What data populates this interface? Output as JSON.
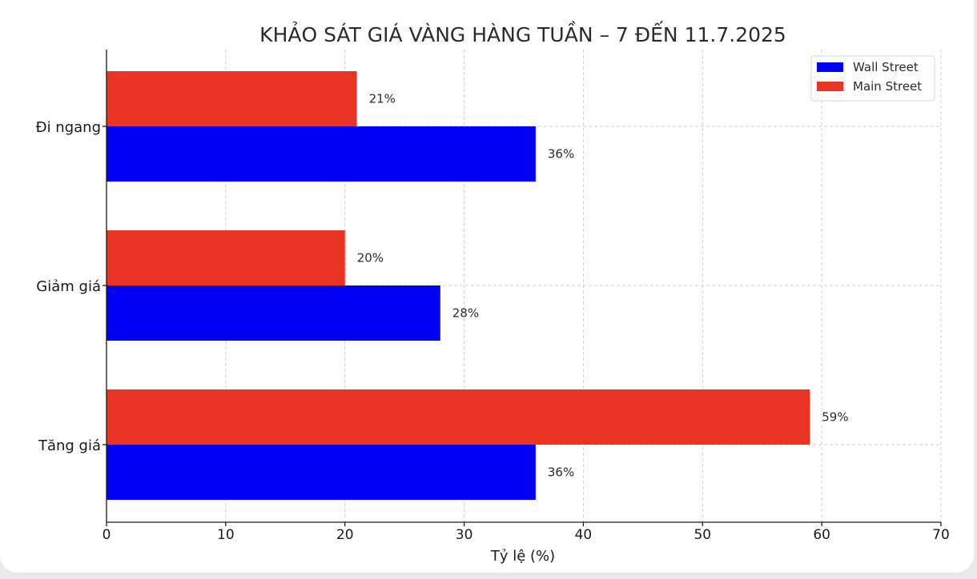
{
  "chart_data": {
    "type": "bar",
    "orientation": "horizontal",
    "title": "KHẢO SÁT GIÁ VÀNG HÀNG TUẦN – 7 ĐẾN 11.7.2025",
    "xlabel": "Tỷ lệ (%)",
    "ylabel": "",
    "xlim": [
      0,
      70
    ],
    "xticks": [
      0,
      10,
      20,
      30,
      40,
      50,
      60,
      70
    ],
    "categories": [
      "Tăng giá",
      "Giảm giá",
      "Đi ngang"
    ],
    "series": [
      {
        "name": "Wall Street",
        "color": "#0000f5",
        "values": [
          36,
          28,
          36
        ],
        "labels": [
          "36%",
          "28%",
          "36%"
        ]
      },
      {
        "name": "Main Street",
        "color": "#e93323",
        "values": [
          59,
          20,
          21
        ],
        "labels": [
          "59%",
          "20%",
          "21%"
        ]
      }
    ],
    "grid": true,
    "legend_position": "top-right"
  }
}
